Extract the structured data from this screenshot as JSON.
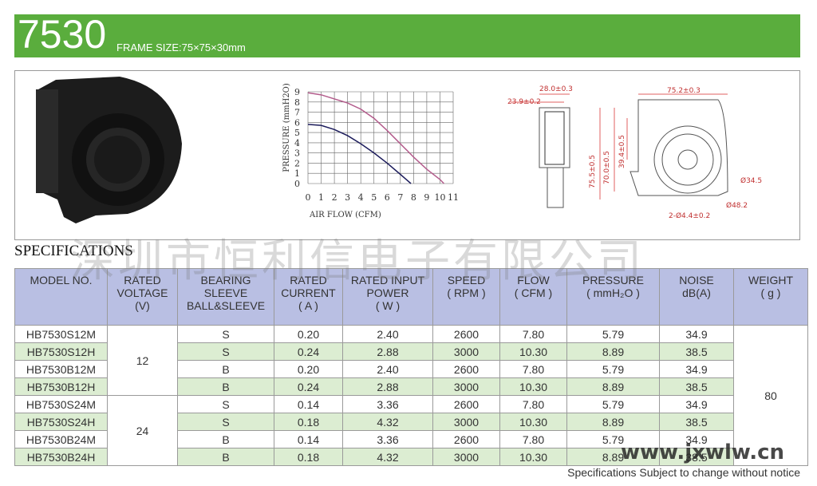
{
  "header": {
    "model": "7530",
    "frame_size": "FRAME SIZE:75×75×30mm"
  },
  "pq_chart": {
    "type": "line",
    "y_label": "PRESSURE (mmH2O)",
    "x_label": "AIR FLOW (CFM)",
    "xlim": [
      0,
      11
    ],
    "ylim": [
      0,
      9
    ],
    "xticks": [
      0,
      1,
      2,
      3,
      4,
      5,
      6,
      7,
      8,
      9,
      10,
      11
    ],
    "yticks": [
      0,
      1,
      2,
      3,
      4,
      5,
      6,
      7,
      8,
      9
    ],
    "grid": true,
    "series": [
      {
        "color": "#b35c8c",
        "x": [
          0,
          1,
          2,
          3,
          4,
          5,
          6,
          7,
          8,
          9,
          10,
          10.3
        ],
        "values": [
          8.9,
          8.7,
          8.3,
          7.9,
          7.3,
          6.4,
          5.2,
          3.9,
          2.6,
          1.4,
          0.4,
          0
        ]
      },
      {
        "color": "#1c1c5c",
        "x": [
          0,
          1,
          2,
          3,
          4,
          5,
          6,
          7,
          7.8
        ],
        "values": [
          5.8,
          5.7,
          5.3,
          4.7,
          3.9,
          3.0,
          2.0,
          0.9,
          0
        ]
      }
    ]
  },
  "drawing": {
    "labels": [
      "28.0±0.3",
      "23.9±0.2",
      "75.2±0.3",
      "75.5±0.5",
      "70.0±0.5",
      "39.4±0.5",
      "Ø34.5",
      "Ø48.2",
      "2-Ø4.4±0.2"
    ]
  },
  "specifications": {
    "title": "SPECIFICATIONS",
    "columns": [
      [
        "MODEL NO."
      ],
      [
        "RATED",
        "VOLTAGE",
        "(V)"
      ],
      [
        "BEARING",
        "SLEEVE",
        "BALL&SLEEVE"
      ],
      [
        "RATED",
        "CURRENT",
        "( A )"
      ],
      [
        "RATED INPUT",
        "POWER",
        "( W )"
      ],
      [
        "SPEED",
        "( RPM )"
      ],
      [
        "FLOW",
        "( CFM )"
      ],
      [
        "PRESSURE",
        "( mmH₂O )"
      ],
      [
        "NOISE",
        "dB(A)"
      ],
      [
        "WEIGHT",
        "( g )"
      ]
    ],
    "voltages": [
      "12",
      "24"
    ],
    "rows": [
      [
        "HB7530S12M",
        "S",
        "0.20",
        "2.40",
        "2600",
        "7.80",
        "5.79",
        "34.9"
      ],
      [
        "HB7530S12H",
        "S",
        "0.24",
        "2.88",
        "3000",
        "10.30",
        "8.89",
        "38.5"
      ],
      [
        "HB7530B12M",
        "B",
        "0.20",
        "2.40",
        "2600",
        "7.80",
        "5.79",
        "34.9"
      ],
      [
        "HB7530B12H",
        "B",
        "0.24",
        "2.88",
        "3000",
        "10.30",
        "8.89",
        "38.5"
      ],
      [
        "HB7530S24M",
        "S",
        "0.14",
        "3.36",
        "2600",
        "7.80",
        "5.79",
        "34.9"
      ],
      [
        "HB7530S24H",
        "S",
        "0.18",
        "4.32",
        "3000",
        "10.30",
        "8.89",
        "38.5"
      ],
      [
        "HB7530B24M",
        "B",
        "0.14",
        "3.36",
        "2600",
        "7.80",
        "5.79",
        "34.9"
      ],
      [
        "HB7530B24H",
        "B",
        "0.18",
        "4.32",
        "3000",
        "10.30",
        "8.89",
        "38.5"
      ]
    ],
    "weight": "80"
  },
  "watermarks": [
    "深圳市恒利信电子有限公司",
    "www.jxwlw.cn"
  ],
  "footer": "Specifications Subject to change without notice"
}
